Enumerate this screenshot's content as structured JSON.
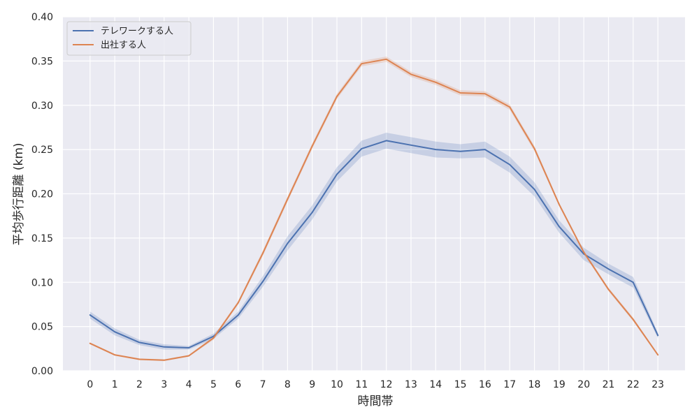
{
  "chart_data": {
    "type": "line",
    "title": "",
    "xlabel": "時間帯",
    "ylabel": "平均歩行距離 (km)",
    "x": [
      0,
      1,
      2,
      3,
      4,
      5,
      6,
      7,
      8,
      9,
      10,
      11,
      12,
      13,
      14,
      15,
      16,
      17,
      18,
      19,
      20,
      21,
      22,
      23
    ],
    "xlim": [
      -1.1,
      24.1
    ],
    "ylim": [
      0,
      0.4
    ],
    "yticks": [
      "0.00",
      "0.05",
      "0.10",
      "0.15",
      "0.20",
      "0.25",
      "0.30",
      "0.35",
      "0.40"
    ],
    "grid": true,
    "legend_position": "top-left",
    "background": "#eaeaf2",
    "series": [
      {
        "name": "テレワークする人",
        "color": "#4c72b0",
        "values": [
          0.063,
          0.044,
          0.032,
          0.027,
          0.026,
          0.039,
          0.063,
          0.101,
          0.144,
          0.179,
          0.222,
          0.251,
          0.26,
          0.255,
          0.25,
          0.248,
          0.25,
          0.233,
          0.205,
          0.163,
          0.132,
          0.115,
          0.1,
          0.04
        ],
        "ci_half": [
          0.004,
          0.004,
          0.003,
          0.003,
          0.002,
          0.003,
          0.004,
          0.006,
          0.008,
          0.008,
          0.008,
          0.009,
          0.009,
          0.009,
          0.009,
          0.008,
          0.009,
          0.009,
          0.008,
          0.007,
          0.007,
          0.006,
          0.006,
          0.003
        ]
      },
      {
        "name": "出社する人",
        "color": "#dd8452",
        "values": [
          0.031,
          0.018,
          0.013,
          0.012,
          0.017,
          0.037,
          0.077,
          0.133,
          0.194,
          0.254,
          0.31,
          0.347,
          0.352,
          0.335,
          0.326,
          0.314,
          0.313,
          0.298,
          0.251,
          0.188,
          0.134,
          0.092,
          0.058,
          0.018
        ],
        "ci_half": [
          0.001,
          0.001,
          0.001,
          0.001,
          0.001,
          0.002,
          0.002,
          0.003,
          0.003,
          0.003,
          0.003,
          0.003,
          0.003,
          0.003,
          0.003,
          0.003,
          0.003,
          0.003,
          0.003,
          0.002,
          0.002,
          0.002,
          0.002,
          0.001
        ]
      }
    ]
  }
}
